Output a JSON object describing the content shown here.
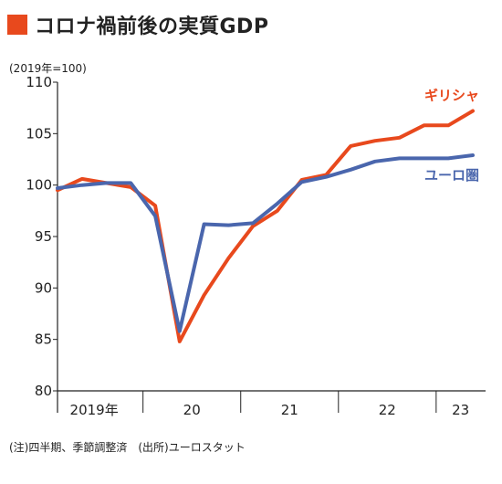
{
  "header": {
    "title": "コロナ禍前後の実質GDP",
    "unit": "(2019年=100)"
  },
  "footer": {
    "note": "(注)四半期、季節調整済　(出所)ユーロスタット"
  },
  "chart_data": {
    "type": "line",
    "title": "コロナ禍前後の実質GDP",
    "ylabel": "(2019年=100)",
    "xlabel": "",
    "ylim": [
      80,
      110
    ],
    "yticks": [
      "80",
      "85",
      "90",
      "95",
      "100",
      "105",
      "110"
    ],
    "x_groups": [
      {
        "label": "2019年",
        "quarters": 4
      },
      {
        "label": "20",
        "quarters": 4
      },
      {
        "label": "21",
        "quarters": 4
      },
      {
        "label": "22",
        "quarters": 4
      },
      {
        "label": "23",
        "quarters": 2
      }
    ],
    "x": [
      "2019Q1",
      "2019Q2",
      "2019Q3",
      "2019Q4",
      "2020Q1",
      "2020Q2",
      "2020Q3",
      "2020Q4",
      "2021Q1",
      "2021Q2",
      "2021Q3",
      "2021Q4",
      "2022Q1",
      "2022Q2",
      "2022Q3",
      "2022Q4",
      "2023Q1",
      "2023Q2"
    ],
    "series": [
      {
        "name": "ギリシャ",
        "color": "#e8491d",
        "values": [
          99.5,
          100.6,
          100.2,
          99.8,
          98.0,
          84.8,
          89.3,
          92.9,
          96.0,
          97.5,
          100.5,
          101.0,
          103.8,
          104.3,
          104.6,
          105.8,
          105.8,
          107.2
        ]
      },
      {
        "name": "ユーロ圏",
        "color": "#4a66ad",
        "values": [
          99.7,
          100.0,
          100.2,
          100.2,
          97.0,
          85.8,
          96.2,
          96.1,
          96.3,
          98.2,
          100.3,
          100.8,
          101.5,
          102.3,
          102.6,
          102.6,
          102.6,
          102.9
        ]
      }
    ],
    "grid": false,
    "legend": "inline-right"
  }
}
